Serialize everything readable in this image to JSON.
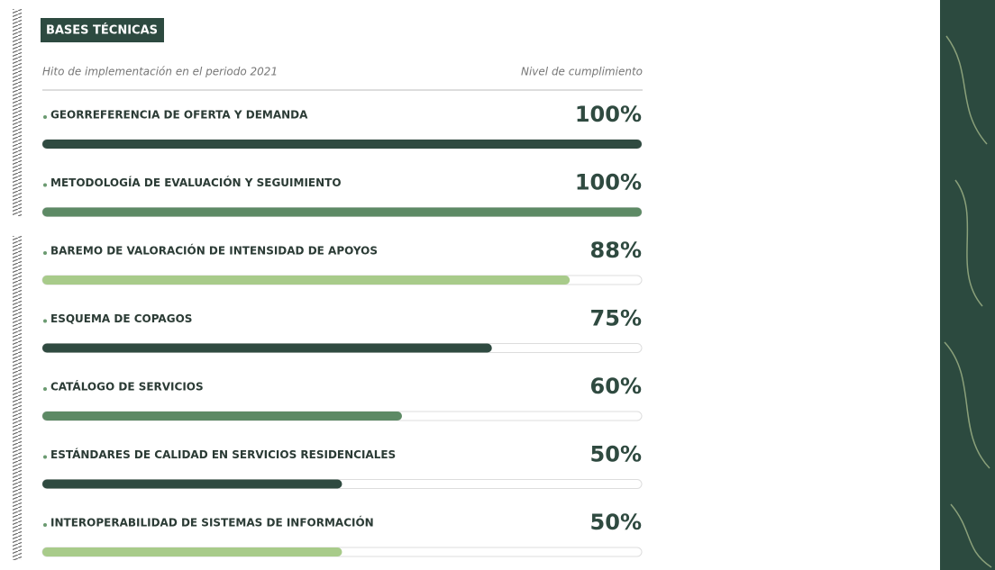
{
  "chart_data": {
    "type": "progress",
    "title": "BASES TÉCNICAS",
    "category_header": "Hito de implementación en el periodo 2021",
    "value_header": "Nivel de cumplimiento",
    "categories": [
      "GEORREFERENCIA DE OFERTA Y DEMANDA",
      "METODOLOGÍA DE EVALUACIÓN Y SEGUIMIENTO",
      "BAREMO DE VALORACIÓN DE INTENSIDAD DE APOYOS",
      "ESQUEMA DE COPAGOS",
      "CATÁLOGO DE SERVICIOS",
      "ESTÁNDARES DE CALIDAD EN SERVICIOS RESIDENCIALES",
      "INTEROPERABILIDAD DE SISTEMAS DE INFORMACIÓN"
    ],
    "values": [
      100,
      100,
      88,
      75,
      60,
      50,
      50
    ],
    "value_labels": [
      "100%",
      "100%",
      "88%",
      "75%",
      "60%",
      "50%",
      "50%"
    ],
    "colors": [
      "#2f4a40",
      "#5d8a65",
      "#a8cb8a",
      "#2f4a40",
      "#5d8a65",
      "#2f4a40",
      "#a8cb8a"
    ],
    "xlim": [
      0,
      100
    ]
  }
}
